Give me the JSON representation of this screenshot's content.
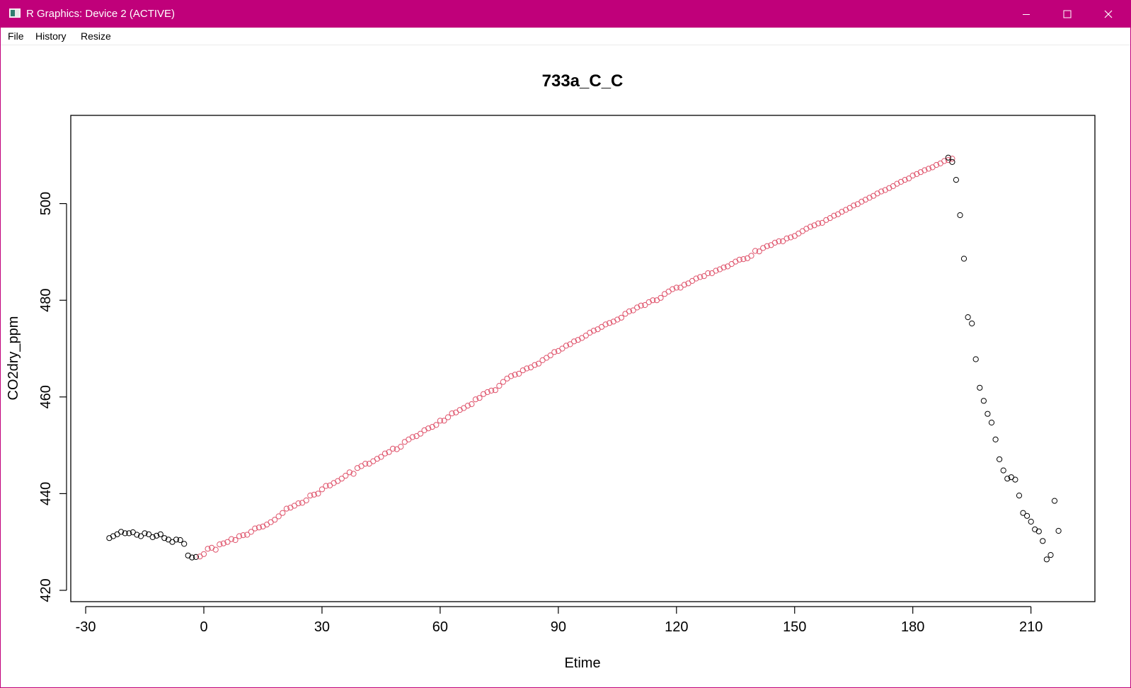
{
  "window": {
    "title": "R Graphics: Device 2 (ACTIVE)",
    "controls": {
      "minimize": "minimize-icon",
      "maximize": "maximize-icon",
      "close": "close-icon"
    }
  },
  "menu": {
    "items": [
      {
        "label": "File"
      },
      {
        "label": "History"
      },
      {
        "label": "Resize"
      }
    ]
  },
  "colors": {
    "titlebar": "#c0007a",
    "series_fit": "#df536b",
    "series_other": "#000000"
  },
  "chart_data": {
    "type": "scatter",
    "title": "733a_C_C",
    "xlabel": "Etime",
    "ylabel": "CO2dry_ppm",
    "xlim": [
      -30,
      227
    ],
    "ylim": [
      417.5,
      518
    ],
    "x_ticks": [
      -30,
      0,
      30,
      60,
      90,
      120,
      150,
      180,
      210
    ],
    "y_ticks": [
      420,
      440,
      460,
      480,
      500
    ],
    "grid": false,
    "legend": "none",
    "series": [
      {
        "color": "#000000",
        "marker": "open-circle",
        "x": [
          -24,
          -23,
          -22,
          -21,
          -20,
          -19,
          -18,
          -17,
          -16,
          -15,
          -14,
          -13,
          -12,
          -11,
          -10,
          -9,
          -8,
          -7,
          -6,
          -5,
          -4,
          -3,
          -2
        ],
        "y": [
          430.8,
          431.2,
          431.6,
          432.1,
          431.8,
          431.8,
          432.0,
          431.5,
          431.2,
          431.8,
          431.6,
          431.0,
          431.3,
          431.6,
          430.8,
          430.5,
          430.0,
          430.5,
          430.4,
          429.6,
          427.2,
          426.8,
          426.9
        ]
      },
      {
        "color": "#df536b",
        "marker": "open-circle",
        "x_start": -1,
        "x_end": 188,
        "y": [
          427.0,
          427.5,
          428.6,
          428.8,
          428.4,
          429.5,
          429.7,
          430.0,
          430.6,
          430.4,
          431.2,
          431.4,
          431.5,
          432.1,
          432.8,
          433.0,
          433.2,
          433.6,
          434.1,
          434.6,
          435.3,
          436.0,
          436.9,
          437.1,
          437.5,
          438.0,
          438.1,
          438.6,
          439.6,
          439.8,
          440.0,
          440.9,
          441.6,
          441.7,
          442.2,
          442.6,
          443.1,
          443.7,
          444.4,
          444.1,
          445.3,
          445.7,
          446.2,
          446.2,
          446.7,
          447.2,
          447.6,
          448.3,
          448.6,
          449.3,
          449.2,
          449.7,
          450.7,
          451.2,
          451.7,
          451.9,
          452.4,
          453.1,
          453.5,
          453.8,
          454.2,
          455.1,
          455.1,
          455.8,
          456.6,
          456.8,
          457.3,
          457.7,
          458.2,
          458.5,
          459.5,
          459.8,
          460.6,
          461.0,
          461.3,
          461.4,
          462.3,
          463.1,
          463.8,
          464.3,
          464.6,
          464.8,
          465.5,
          465.9,
          466.1,
          466.6,
          466.9,
          467.6,
          468.1,
          468.6,
          469.3,
          469.5,
          470.0,
          470.6,
          470.9,
          471.5,
          471.8,
          472.2,
          472.7,
          473.3,
          473.7,
          474.0,
          474.5,
          475.0,
          475.3,
          475.6,
          476.0,
          476.4,
          477.2,
          477.7,
          477.9,
          478.5,
          478.9,
          479.0,
          479.6,
          480.0,
          480.0,
          480.5,
          481.3,
          481.8,
          482.3,
          482.6,
          482.6,
          483.2,
          483.5,
          484.0,
          484.5,
          484.8,
          485.0,
          485.6,
          485.6,
          486.1,
          486.4,
          486.8,
          487.0,
          487.5,
          488.0,
          488.4,
          488.5,
          488.7,
          489.2,
          490.2,
          490.1,
          490.8,
          491.2,
          491.4,
          491.9,
          492.2,
          492.2,
          492.8,
          493.0,
          493.3,
          493.8,
          494.3,
          494.8,
          495.2,
          495.5,
          495.9,
          496.0,
          496.6,
          497.0,
          497.5,
          497.8,
          498.3,
          498.7,
          499.1,
          499.6,
          499.9,
          500.4,
          500.8,
          501.2,
          501.6,
          502.1,
          502.5,
          502.8,
          503.2,
          503.6,
          504.1,
          504.5,
          504.9,
          505.2,
          505.8,
          506.1,
          506.5,
          506.9,
          507.2,
          507.5,
          508.0,
          508.3,
          508.8,
          509.0,
          509.3
        ]
      },
      {
        "color": "#000000",
        "marker": "open-circle",
        "x": [
          189,
          190,
          191,
          192,
          193,
          194,
          195,
          196,
          197,
          198,
          199,
          200,
          201,
          202,
          203,
          204,
          205,
          206,
          207,
          208,
          209,
          210,
          211,
          212,
          213,
          214,
          215,
          216,
          217
        ],
        "y": [
          509.5,
          508.6,
          504.9,
          497.6,
          488.6,
          476.5,
          475.2,
          467.8,
          461.9,
          459.2,
          456.5,
          454.7,
          451.2,
          447.1,
          444.8,
          443.1,
          443.4,
          442.9,
          439.6,
          436.0,
          435.4,
          434.2,
          432.6,
          432.2,
          430.2,
          426.4,
          427.3,
          438.5,
          432.3
        ]
      }
    ]
  }
}
